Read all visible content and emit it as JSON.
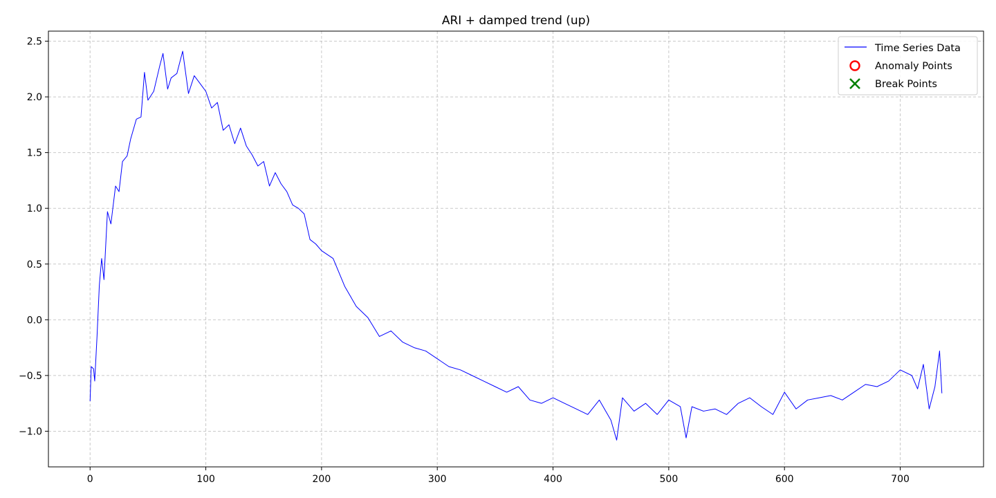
{
  "chart_data": {
    "type": "line",
    "title": "ARI + damped trend (up)",
    "xlabel": "",
    "ylabel": "",
    "xlim": [
      -36,
      772
    ],
    "ylim": [
      -1.32,
      2.59
    ],
    "x_ticks": [
      0,
      100,
      200,
      300,
      400,
      500,
      600,
      700
    ],
    "y_ticks": [
      -1.0,
      -0.5,
      0.0,
      0.5,
      1.0,
      1.5,
      2.0,
      2.5
    ],
    "y_tick_labels": [
      "−1.0",
      "−0.5",
      "0.0",
      "0.5",
      "1.0",
      "1.5",
      "2.0",
      "2.5"
    ],
    "grid": true,
    "legend_position": "top-right",
    "series": [
      {
        "name": "Time Series Data",
        "color": "#0000ff",
        "x": [
          0,
          1,
          3,
          4,
          6,
          8,
          10,
          12,
          15,
          18,
          22,
          25,
          28,
          32,
          35,
          40,
          44,
          47,
          50,
          55,
          60,
          63,
          67,
          70,
          75,
          80,
          85,
          90,
          95,
          100,
          105,
          110,
          115,
          120,
          125,
          130,
          135,
          140,
          145,
          150,
          155,
          160,
          165,
          170,
          175,
          180,
          185,
          190,
          195,
          200,
          210,
          220,
          230,
          240,
          250,
          260,
          270,
          280,
          290,
          300,
          310,
          320,
          330,
          340,
          350,
          360,
          370,
          380,
          390,
          400,
          410,
          420,
          430,
          440,
          450,
          455,
          460,
          470,
          480,
          490,
          500,
          510,
          515,
          520,
          530,
          540,
          550,
          560,
          570,
          580,
          590,
          600,
          610,
          620,
          630,
          640,
          650,
          660,
          670,
          680,
          690,
          700,
          710,
          715,
          720,
          725,
          730,
          734,
          736
        ],
        "values": [
          -0.73,
          -0.42,
          -0.44,
          -0.55,
          -0.15,
          0.31,
          0.55,
          0.36,
          0.97,
          0.86,
          1.2,
          1.15,
          1.42,
          1.47,
          1.62,
          1.8,
          1.82,
          2.22,
          1.97,
          2.05,
          2.27,
          2.39,
          2.07,
          2.17,
          2.21,
          2.41,
          2.03,
          2.19,
          2.12,
          2.05,
          1.9,
          1.95,
          1.7,
          1.75,
          1.58,
          1.72,
          1.56,
          1.48,
          1.38,
          1.42,
          1.2,
          1.32,
          1.22,
          1.15,
          1.03,
          1.0,
          0.95,
          0.72,
          0.68,
          0.62,
          0.55,
          0.3,
          0.12,
          0.02,
          -0.15,
          -0.1,
          -0.2,
          -0.25,
          -0.28,
          -0.35,
          -0.42,
          -0.45,
          -0.5,
          -0.55,
          -0.6,
          -0.65,
          -0.6,
          -0.72,
          -0.75,
          -0.7,
          -0.75,
          -0.8,
          -0.85,
          -0.72,
          -0.9,
          -1.08,
          -0.7,
          -0.82,
          -0.75,
          -0.85,
          -0.72,
          -0.78,
          -1.06,
          -0.78,
          -0.82,
          -0.8,
          -0.85,
          -0.75,
          -0.7,
          -0.78,
          -0.85,
          -0.65,
          -0.8,
          -0.72,
          -0.7,
          -0.68,
          -0.72,
          -0.65,
          -0.58,
          -0.6,
          -0.55,
          -0.45,
          -0.5,
          -0.62,
          -0.4,
          -0.8,
          -0.6,
          -0.28,
          -0.66
        ]
      },
      {
        "name": "Anomaly Points",
        "color": "#ff0000",
        "x": [],
        "values": []
      },
      {
        "name": "Break Points",
        "color": "#008000",
        "x": [],
        "values": []
      }
    ]
  }
}
